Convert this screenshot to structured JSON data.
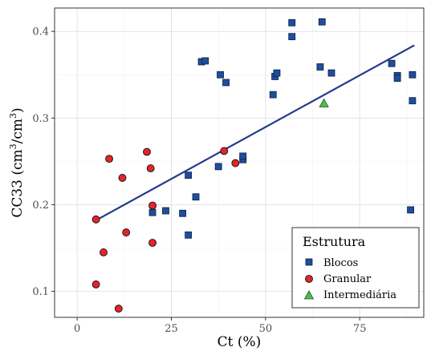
{
  "chart_data": {
    "type": "scatter",
    "xlabel": "Ct (%)",
    "ylabel_main": "CC33 (cm",
    "ylabel_sup1": "3",
    "ylabel_mid": "/cm",
    "ylabel_sup2": "3",
    "ylabel_end": ")",
    "xlim": [
      -6,
      92
    ],
    "ylim": [
      0.07,
      0.427
    ],
    "x_ticks": [
      0,
      25,
      50,
      75
    ],
    "x_tick_labels": [
      "0",
      "25",
      "50",
      "75"
    ],
    "y_ticks": [
      0.1,
      0.2,
      0.3,
      0.4
    ],
    "y_tick_labels": [
      "0.1",
      "0.2",
      "0.3",
      "0.4"
    ],
    "grid": true,
    "legend": {
      "title": "Estrutura",
      "placement": "bottom-right"
    },
    "series": [
      {
        "name": "Blocos",
        "marker": "square",
        "color": "#1f4e9c",
        "points": [
          [
            20.0,
            0.191
          ],
          [
            23.5,
            0.193
          ],
          [
            28.0,
            0.19
          ],
          [
            29.5,
            0.165
          ],
          [
            29.5,
            0.234
          ],
          [
            31.5,
            0.209
          ],
          [
            33.0,
            0.365
          ],
          [
            34.0,
            0.366
          ],
          [
            37.5,
            0.244
          ],
          [
            38.0,
            0.35
          ],
          [
            39.5,
            0.341
          ],
          [
            44.0,
            0.252
          ],
          [
            44.0,
            0.256
          ],
          [
            52.0,
            0.327
          ],
          [
            52.5,
            0.348
          ],
          [
            53.0,
            0.352
          ],
          [
            57.0,
            0.41
          ],
          [
            57.0,
            0.394
          ],
          [
            64.5,
            0.359
          ],
          [
            65.0,
            0.411
          ],
          [
            67.5,
            0.352
          ],
          [
            83.5,
            0.363
          ],
          [
            85.0,
            0.349
          ],
          [
            85.0,
            0.346
          ],
          [
            88.5,
            0.194
          ],
          [
            89.0,
            0.35
          ],
          [
            89.0,
            0.32
          ]
        ]
      },
      {
        "name": "Granular",
        "marker": "circle",
        "color": "#e0262b",
        "points": [
          [
            5.0,
            0.183
          ],
          [
            5.0,
            0.108
          ],
          [
            7.0,
            0.145
          ],
          [
            8.5,
            0.253
          ],
          [
            11.0,
            0.08
          ],
          [
            12.0,
            0.231
          ],
          [
            13.0,
            0.168
          ],
          [
            18.5,
            0.261
          ],
          [
            19.5,
            0.242
          ],
          [
            20.0,
            0.199
          ],
          [
            20.0,
            0.156
          ],
          [
            39.0,
            0.262
          ],
          [
            42.0,
            0.248
          ]
        ]
      },
      {
        "name": "Intermediária",
        "marker": "triangle",
        "color": "#4cc04c",
        "points": [
          [
            65.5,
            0.317
          ]
        ]
      }
    ],
    "trend_line": {
      "color": "#263a8c",
      "x": [
        5.0,
        89.5
      ],
      "y": [
        0.182,
        0.384
      ]
    }
  }
}
